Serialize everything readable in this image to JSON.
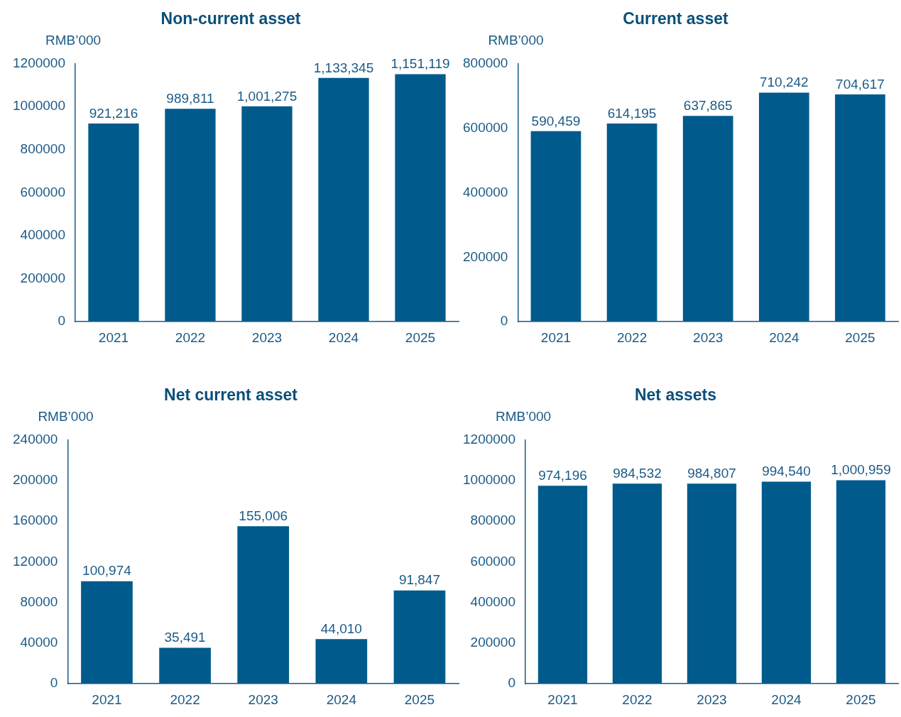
{
  "chart_data": [
    {
      "type": "bar",
      "title": "Non-current asset",
      "ylabel": "RMB’000",
      "categories": [
        "2021",
        "2022",
        "2023",
        "2024",
        "2025"
      ],
      "values": [
        921216,
        989811,
        1001275,
        1133345,
        1151119
      ],
      "value_labels": [
        "921,216",
        "989,811",
        "1,001,275",
        "1,133,345",
        "1,151,119"
      ],
      "color": "#005b8c",
      "ylim": [
        0,
        1200000
      ],
      "yticks": [
        0,
        200000,
        400000,
        600000,
        800000,
        1000000,
        1200000
      ],
      "grid": false,
      "legend": false
    },
    {
      "type": "bar",
      "title": "Current asset",
      "ylabel": "RMB’000",
      "categories": [
        "2021",
        "2022",
        "2023",
        "2024",
        "2025"
      ],
      "values": [
        590459,
        614195,
        637865,
        710242,
        704617
      ],
      "value_labels": [
        "590,459",
        "614,195",
        "637,865",
        "710,242",
        "704,617"
      ],
      "color": "#005b8c",
      "ylim": [
        0,
        800000
      ],
      "yticks": [
        0,
        200000,
        400000,
        600000,
        800000
      ],
      "grid": false,
      "legend": false
    },
    {
      "type": "bar",
      "title": "Net current asset",
      "ylabel": "RMB’000",
      "categories": [
        "2021",
        "2022",
        "2023",
        "2024",
        "2025"
      ],
      "values": [
        100974,
        35491,
        155006,
        44010,
        91847
      ],
      "value_labels": [
        "100,974",
        "35,491",
        "155,006",
        "44,010",
        "91,847"
      ],
      "color": "#005b8c",
      "ylim": [
        0,
        240000
      ],
      "yticks": [
        0,
        40000,
        80000,
        120000,
        160000,
        200000,
        240000
      ],
      "grid": false,
      "legend": false
    },
    {
      "type": "bar",
      "title": "Net assets",
      "ylabel": "RMB’000",
      "categories": [
        "2021",
        "2022",
        "2023",
        "2024",
        "2025"
      ],
      "values": [
        974196,
        984532,
        984807,
        994540,
        1000959
      ],
      "value_labels": [
        "974,196",
        "984,532",
        "984,807",
        "994,540",
        "1,000,959"
      ],
      "color": "#005b8c",
      "ylim": [
        0,
        1200000
      ],
      "yticks": [
        0,
        200000,
        400000,
        600000,
        800000,
        1000000,
        1200000
      ],
      "grid": false,
      "legend": false
    }
  ]
}
